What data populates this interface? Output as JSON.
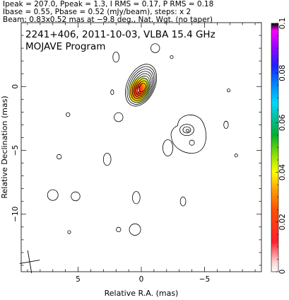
{
  "header": {
    "line1": "Ipeak = 207.0, Ppeak = 1.3, I RMS = 0.17, P RMS = 0.18",
    "line2": "Ibase = 0.55, Pbase = 0.52 (mJy/beam), steps: x 2",
    "line3": "Beam: 0.83x0.52 mas at −9.8 deg., Nat. Wgt. (no taper)"
  },
  "plot_title": {
    "line1": "2241+406, 2011-10-03, VLBA 15.4 GHz",
    "line2": "MOJAVE Program"
  },
  "chart_data": {
    "type": "contour",
    "source": "2241+406",
    "date": "2011-10-03",
    "instrument": "VLBA 15.4 GHz",
    "program": "MOJAVE Program",
    "ipeak_mJy_per_beam": 207.0,
    "ppeak_mJy_per_beam": 1.3,
    "i_rms": 0.17,
    "p_rms": 0.18,
    "ibase": 0.55,
    "pbase": 0.52,
    "contour_step_factor": 2,
    "beam": {
      "major_mas": 0.83,
      "minor_mas": 0.52,
      "pa_deg": -9.8
    },
    "weighting": "Nat. Wgt. (no taper)",
    "xlabel": "Relative R.A. (mas)",
    "ylabel": "Relative Declination (mas)",
    "xlim": [
      9.5,
      -9.5
    ],
    "ylim": [
      -14.5,
      5.0
    ],
    "x_ticks": [
      5,
      0,
      -5
    ],
    "x_tick_labels": [
      "5",
      "0",
      "−5"
    ],
    "y_ticks": [
      0,
      -5,
      -10
    ],
    "y_tick_labels": [
      "0",
      "−5",
      "−10"
    ],
    "colorbar": {
      "min": 0,
      "max": 0.1,
      "ticks": [
        0,
        0.02,
        0.04,
        0.06,
        0.08,
        0.1
      ],
      "tick_labels": [
        "0",
        "0.02",
        "0.04",
        "0.06",
        "0.08",
        "0.1"
      ]
    },
    "core": {
      "x": -0.1,
      "y": -0.1,
      "levels": 9,
      "pa_deg": 25,
      "axis_ratio": 0.62
    },
    "jet_feature": {
      "x": -3.6,
      "y": -3.4,
      "levels": 3
    },
    "noise_contours": [
      {
        "x": 2.0,
        "y": 2.3,
        "r": 0.25
      },
      {
        "x": -1.1,
        "y": 3.0,
        "r": 0.35
      },
      {
        "x": -2.4,
        "y": 2.3,
        "r": 0.12
      },
      {
        "x": 2.3,
        "y": -0.45,
        "r": 0.12
      },
      {
        "x": 5.8,
        "y": -2.2,
        "r": 0.15
      },
      {
        "x": 1.8,
        "y": -2.4,
        "r": 0.35
      },
      {
        "x": -2.1,
        "y": -4.8,
        "r": 0.4
      },
      {
        "x": -4.0,
        "y": -4.4,
        "r": 0.2
      },
      {
        "x": -6.9,
        "y": -0.3,
        "r": 0.12
      },
      {
        "x": -6.7,
        "y": -3.0,
        "r": 0.18
      },
      {
        "x": -7.5,
        "y": -5.4,
        "r": 0.12
      },
      {
        "x": 6.5,
        "y": -5.5,
        "r": 0.18
      },
      {
        "x": 2.7,
        "y": -5.7,
        "r": 0.3
      },
      {
        "x": 7.0,
        "y": -8.5,
        "r": 0.42
      },
      {
        "x": 5.2,
        "y": -8.6,
        "r": 0.35
      },
      {
        "x": 0.4,
        "y": -8.7,
        "r": 0.3
      },
      {
        "x": 1.8,
        "y": -11.2,
        "r": 0.18
      },
      {
        "x": 0.5,
        "y": -11.2,
        "r": 0.45
      },
      {
        "x": -3.3,
        "y": -9.0,
        "r": 0.22
      },
      {
        "x": 5.7,
        "y": -11.4,
        "r": 0.12
      }
    ]
  }
}
